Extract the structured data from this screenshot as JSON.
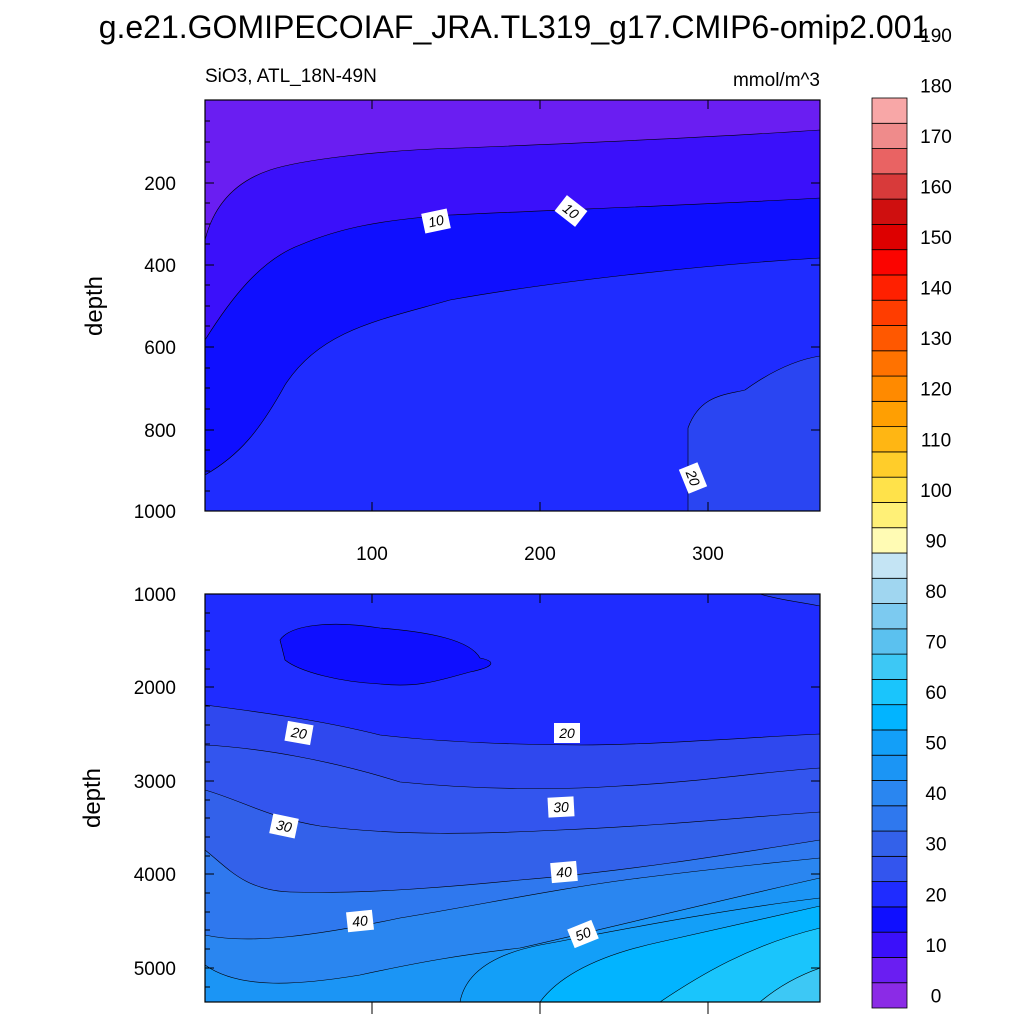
{
  "title": "g.e21.GOMIPECOIAF_JRA.TL319_g17.CMIP6-omip2.001",
  "subtitle_left": "SiO3, ATL_18N-49N",
  "subtitle_right": "mmol/m^3",
  "chart_data": [
    {
      "type": "contour",
      "panel": "upper",
      "ylabel": "depth",
      "x_range": [
        1,
        366
      ],
      "xticks": [
        "100",
        "200",
        "300"
      ],
      "y_range": [
        0,
        1000
      ],
      "yticks": [
        "200",
        "400",
        "600",
        "800",
        "1000"
      ],
      "contour_labels": [
        "10",
        "10",
        "20"
      ]
    },
    {
      "type": "contour",
      "panel": "lower",
      "ylabel": "depth",
      "x_range": [
        1,
        366
      ],
      "y_range": [
        1000,
        5350
      ],
      "yticks": [
        "1000",
        "2000",
        "3000",
        "4000",
        "5000"
      ],
      "contour_labels": [
        "20",
        "20",
        "30",
        "30",
        "40",
        "40",
        "50"
      ]
    }
  ],
  "colorbar": {
    "labels": [
      "0",
      "10",
      "20",
      "30",
      "40",
      "50",
      "60",
      "70",
      "80",
      "90",
      "100",
      "110",
      "120",
      "130",
      "140",
      "150",
      "160",
      "170",
      "180",
      "190"
    ],
    "colors": [
      "#8b2be6",
      "#6a1ef2",
      "#3b10fa",
      "#0f0fff",
      "#1f2cff",
      "#3355ee",
      "#3361ea",
      "#2f78ee",
      "#2a86f0",
      "#1b95f5",
      "#139ff8",
      "#02b4ff",
      "#1ac5fc",
      "#3dc8f5",
      "#5bc1ef",
      "#7ccaf0",
      "#a0d6f0",
      "#c4e4f4",
      "#fffbb4",
      "#fff077",
      "#ffe24a",
      "#ffcd2a",
      "#ffb613",
      "#ff9f02",
      "#ff8a00",
      "#ff7200",
      "#ff5800",
      "#ff3d00",
      "#ff2000",
      "#fb0400",
      "#dd0000",
      "#cf0f0f",
      "#d83a3a",
      "#e96363",
      "#ef8b8b",
      "#f8a7a7"
    ]
  }
}
